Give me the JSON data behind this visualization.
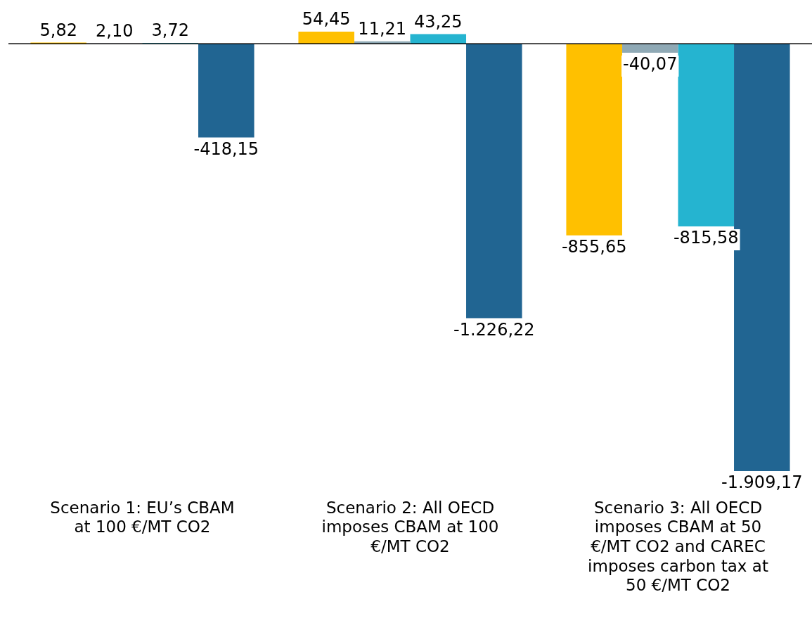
{
  "chart_data": {
    "type": "bar",
    "categories": [
      "Scenario 1: EU’s CBAM at 100 €/MT CO2",
      "Scenario 2: All OECD imposes CBAM at 100 €/MT CO2",
      "Scenario 3: All OECD imposes CBAM at 50 €/MT CO2 and CAREC imposes carbon tax at 50 €/MT CO2"
    ],
    "series": [
      {
        "color": "#ffc000",
        "values": [
          5.82,
          54.45,
          -855.65
        ],
        "value_labels": [
          "5,82",
          "54,45",
          "-855,65"
        ]
      },
      {
        "color": "#8fa9b5",
        "values": [
          2.1,
          11.21,
          -40.07
        ],
        "value_labels": [
          "2,10",
          "11,21",
          "-40,07"
        ]
      },
      {
        "color": "#25b4d0",
        "values": [
          3.72,
          43.25,
          -815.58
        ],
        "value_labels": [
          "3,72",
          "43,25",
          "-815,58"
        ]
      },
      {
        "color": "#216592",
        "values": [
          -418.15,
          -1226.22,
          -1909.17
        ],
        "value_labels": [
          "-418,15",
          "-1.226,22",
          "-1.909,17"
        ]
      }
    ],
    "grid": false,
    "legend": false
  }
}
